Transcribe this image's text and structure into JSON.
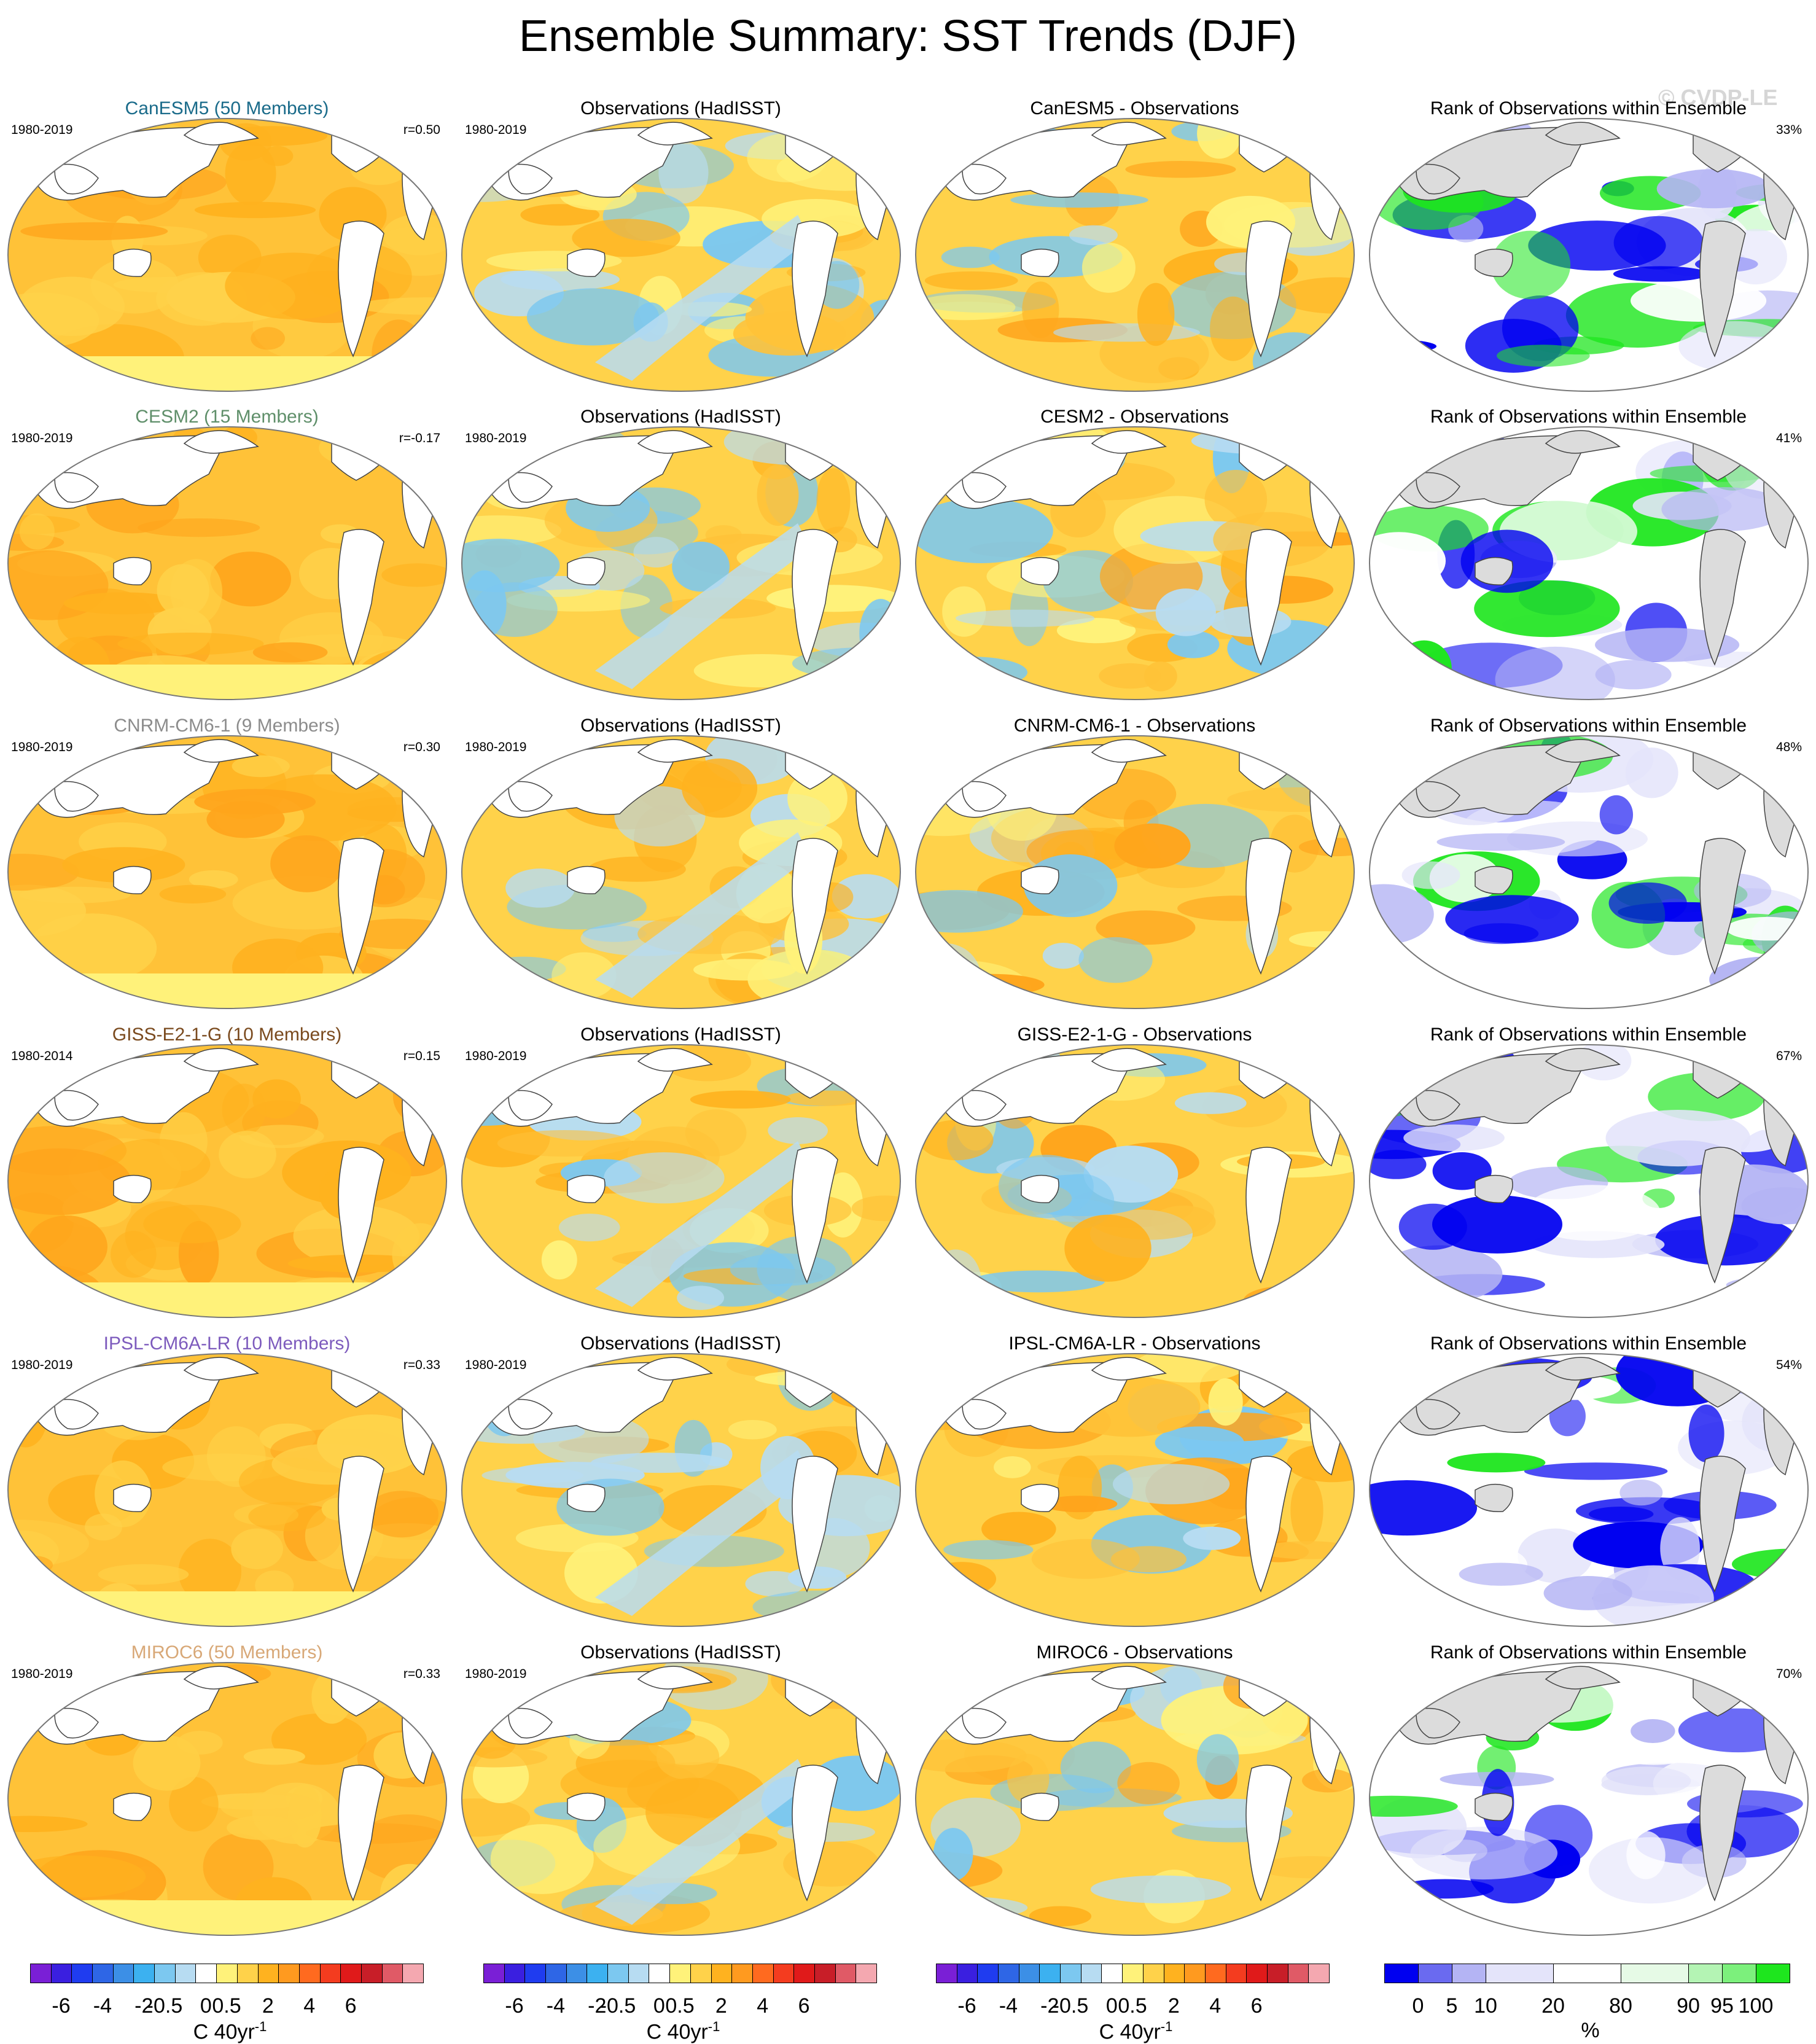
{
  "title": "Ensemble Summary: SST Trends (DJF)",
  "watermark": "© CVDP-LE",
  "colors": {
    "model_title_colors": [
      "#1a6b8a",
      "#5f8f6a",
      "#8c8c8c",
      "#7a4a1e",
      "#7d5bbd",
      "#d8a877"
    ],
    "land_rank": "#dcdcdc",
    "coast": "#444444"
  },
  "rows": [
    {
      "model": {
        "title": "CanESM5 (50 Members)",
        "period": "1980-2019",
        "r": "r=0.50"
      },
      "obs": {
        "title": "Observations (HadISST)",
        "period": "1980-2019"
      },
      "diff": {
        "title": "CanESM5 - Observations"
      },
      "rank": {
        "title": "Rank of Observations within Ensemble",
        "pct": "33%"
      }
    },
    {
      "model": {
        "title": "CESM2 (15 Members)",
        "period": "1980-2019",
        "r": "r=-0.17"
      },
      "obs": {
        "title": "Observations (HadISST)",
        "period": "1980-2019"
      },
      "diff": {
        "title": "CESM2 - Observations"
      },
      "rank": {
        "title": "Rank of Observations within Ensemble",
        "pct": "41%"
      }
    },
    {
      "model": {
        "title": "CNRM-CM6-1 (9 Members)",
        "period": "1980-2019",
        "r": "r=0.30"
      },
      "obs": {
        "title": "Observations (HadISST)",
        "period": "1980-2019"
      },
      "diff": {
        "title": "CNRM-CM6-1 - Observations"
      },
      "rank": {
        "title": "Rank of Observations within Ensemble",
        "pct": "48%"
      }
    },
    {
      "model": {
        "title": "GISS-E2-1-G (10 Members)",
        "period": "1980-2014",
        "r": "r=0.15"
      },
      "obs": {
        "title": "Observations (HadISST)",
        "period": "1980-2019"
      },
      "diff": {
        "title": "GISS-E2-1-G - Observations"
      },
      "rank": {
        "title": "Rank of Observations within Ensemble",
        "pct": "67%"
      }
    },
    {
      "model": {
        "title": "IPSL-CM6A-LR (10 Members)",
        "period": "1980-2019",
        "r": "r=0.33"
      },
      "obs": {
        "title": "Observations (HadISST)",
        "period": "1980-2019"
      },
      "diff": {
        "title": "IPSL-CM6A-LR - Observations"
      },
      "rank": {
        "title": "Rank of Observations within Ensemble",
        "pct": "54%"
      }
    },
    {
      "model": {
        "title": "MIROC6 (50 Members)",
        "period": "1980-2019",
        "r": "r=0.33"
      },
      "obs": {
        "title": "Observations (HadISST)",
        "period": "1980-2019"
      },
      "diff": {
        "title": "MIROC6 - Observations"
      },
      "rank": {
        "title": "Rank of Observations within Ensemble",
        "pct": "70%"
      }
    }
  ],
  "colorbars": {
    "trend": {
      "colors": [
        "#7a1fd6",
        "#3a1fe0",
        "#1f3cf0",
        "#2e66e6",
        "#3c8fe6",
        "#3cb1f0",
        "#7cc8f0",
        "#b7dcf2",
        "#ffffff",
        "#fff27a",
        "#ffd24a",
        "#ffb21f",
        "#ff9a1f",
        "#ff6a1f",
        "#f43c1f",
        "#e01a1a",
        "#c81e28",
        "#e05a66",
        "#f4a8b0"
      ],
      "ticks": [
        "-6",
        "-4",
        "-2",
        "-0.5",
        "0",
        "0.5",
        "2",
        "4",
        "6"
      ],
      "unit": "C 40yr",
      "unit_sup": "-1"
    },
    "rank": {
      "colors": [
        "#0000f0",
        "#6a6af0",
        "#b4b4f4",
        "#e4e4fa",
        "#ffffff",
        "#e6fae6",
        "#b4f4b4",
        "#7cf07c",
        "#1ee61e"
      ],
      "ticks": [
        "0",
        "5",
        "10",
        "20",
        "80",
        "90",
        "95",
        "100"
      ],
      "unit": "%"
    }
  }
}
